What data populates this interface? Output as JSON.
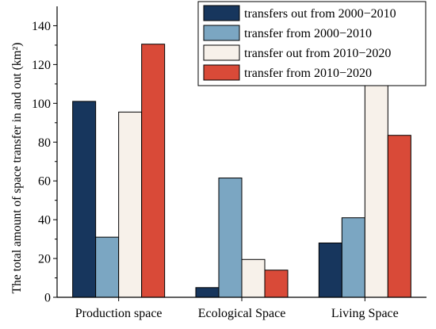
{
  "chart_data": {
    "type": "bar",
    "title": "",
    "xlabel": "",
    "ylabel": "The total amount of space transfer in and out (km²)",
    "ylim": [
      0,
      150
    ],
    "yticks": [
      0,
      20,
      40,
      60,
      80,
      100,
      120,
      140
    ],
    "categories": [
      "Production space",
      "Ecological Space",
      "Living Space"
    ],
    "series": [
      {
        "name": "transfers out from 2000−2010",
        "color": "#17365d",
        "values": [
          101,
          5,
          28
        ]
      },
      {
        "name": "transfer from 2000−2010",
        "color": "#7ba6c2",
        "values": [
          31,
          61.5,
          41
        ]
      },
      {
        "name": "transfer out from 2010−2020",
        "color": "#f7f1ea",
        "values": [
          95.5,
          19.5,
          113
        ]
      },
      {
        "name": "transfer from 2010−2020",
        "color": "#d94a38",
        "values": [
          130.5,
          14,
          83.5
        ]
      }
    ],
    "legend": "top-right",
    "grid": false
  }
}
